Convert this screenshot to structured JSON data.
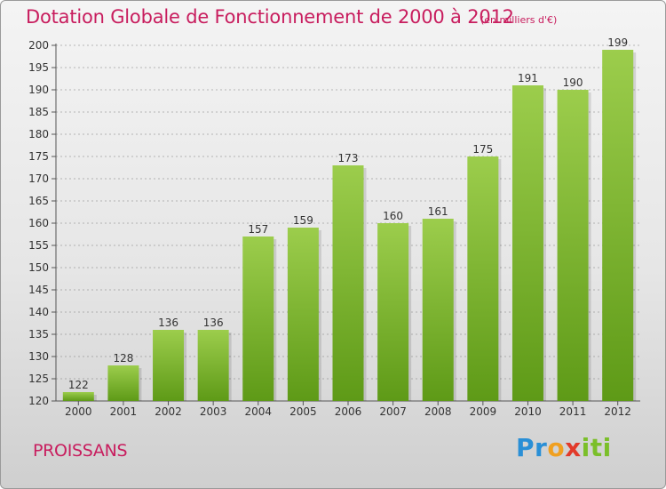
{
  "header": {
    "title": "Dotation Globale de Fonctionnement de 2000 à 2012",
    "unit": "(en milliers d'€)"
  },
  "footer": {
    "commune": "PROISSANS",
    "logo": "Proxiti",
    "logo_colors": [
      "#2a8fd6",
      "#f0a020",
      "#e23a2a",
      "#7bbf2a"
    ]
  },
  "colors": {
    "bar_top": "#9ccd4c",
    "bar_bottom": "#5e9a17",
    "title": "#c81d5e",
    "grid": "#7a7a7a"
  },
  "chart_data": {
    "type": "bar",
    "title": "Dotation Globale de Fonctionnement de 2000 à 2012",
    "subtitle": "(en milliers d'€)",
    "xlabel": "",
    "ylabel": "",
    "categories": [
      "2000",
      "2001",
      "2002",
      "2003",
      "2004",
      "2005",
      "2006",
      "2007",
      "2008",
      "2009",
      "2010",
      "2011",
      "2012"
    ],
    "values": [
      122,
      128,
      136,
      136,
      157,
      159,
      173,
      160,
      161,
      175,
      191,
      190,
      199
    ],
    "ylim": [
      120,
      200
    ],
    "yticks": [
      120,
      125,
      130,
      135,
      140,
      145,
      150,
      155,
      160,
      165,
      170,
      175,
      180,
      185,
      190,
      195,
      200
    ],
    "grid": true,
    "data_labels": true
  }
}
